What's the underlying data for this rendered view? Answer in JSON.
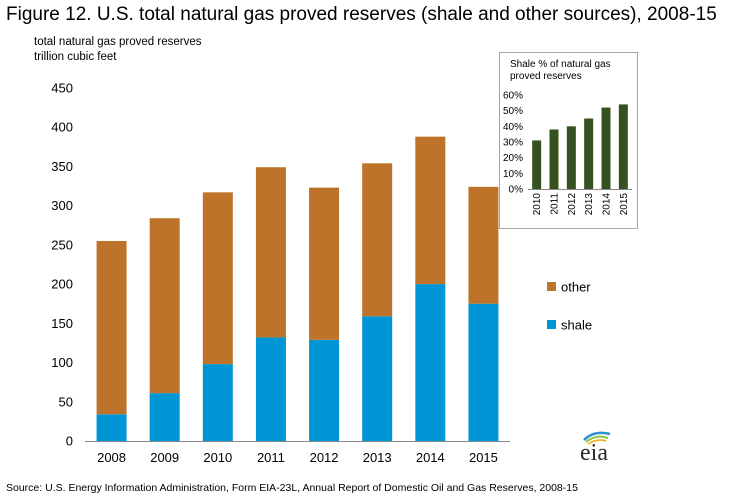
{
  "figure": {
    "title": "Figure 12. U.S. total natural gas proved reserves (shale and other sources), 2008-15",
    "ylabel_line1": "total natural gas proved reserves",
    "ylabel_line2": "trillion cubic feet",
    "source": "Source: U.S. Energy Information Administration, Form EIA-23L,  Annual Report of Domestic Oil and Gas Reserves, 2008-15",
    "logo_text": "eia"
  },
  "chart_data": [
    {
      "type": "bar",
      "stacked": true,
      "categories": [
        "2008",
        "2009",
        "2010",
        "2011",
        "2012",
        "2013",
        "2014",
        "2015"
      ],
      "series": [
        {
          "name": "shale",
          "color": "#0096d6",
          "values": [
            34,
            61,
            98,
            132,
            129,
            159,
            200,
            175
          ]
        },
        {
          "name": "other",
          "color": "#bd732a",
          "values": [
            221,
            223,
            219,
            217,
            194,
            195,
            188,
            149
          ]
        }
      ],
      "ylim": [
        0,
        450
      ],
      "yticks": [
        0,
        50,
        100,
        150,
        200,
        250,
        300,
        350,
        400,
        450
      ],
      "legend": [
        "other",
        "shale"
      ],
      "legend_position": "right"
    },
    {
      "type": "bar",
      "title_line1": "Shale % of natural gas",
      "title_line2": "proved reserves",
      "categories": [
        "2010",
        "2011",
        "2012",
        "2013",
        "2014",
        "2015"
      ],
      "values": [
        31,
        38,
        40,
        45,
        52,
        54
      ],
      "color": "#35511f",
      "ylim": [
        0,
        60
      ],
      "yticks": [
        "0%",
        "10%",
        "20%",
        "30%",
        "40%",
        "50%",
        "60%"
      ]
    }
  ]
}
